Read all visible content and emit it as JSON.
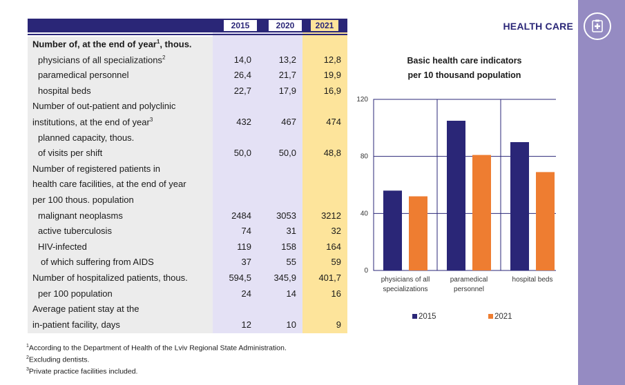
{
  "header": {
    "section_title": "HEALTH CARE",
    "logo_icon": "medical-cross-icon"
  },
  "colors": {
    "navy": "#2a2677",
    "orange": "#ee7d31",
    "lavender": "#958bc2",
    "highlight_2021": "#fde49b"
  },
  "table": {
    "years": [
      "2015",
      "2020",
      "2021"
    ],
    "rows": [
      {
        "label": "Number of, at the end of year",
        "sup": "1",
        "label_tail": ", thous.",
        "bold": true,
        "indent": 0,
        "values": [
          "",
          "",
          ""
        ]
      },
      {
        "label": "physicians of all specializations",
        "sup": "2",
        "label_tail": "",
        "indent": 2,
        "values": [
          "14,0",
          "13,2",
          "12,8"
        ]
      },
      {
        "label": "paramedical personnel",
        "sup": "",
        "label_tail": "",
        "indent": 2,
        "values": [
          "26,4",
          "21,7",
          "19,9"
        ]
      },
      {
        "label": "hospital beds",
        "sup": "",
        "label_tail": "",
        "indent": 2,
        "values": [
          "22,7",
          "17,9",
          "16,9"
        ]
      },
      {
        "label": "Number of out-patient and polyclinic",
        "sup": "",
        "label_tail": "",
        "indent": 1,
        "values": [
          "",
          "",
          ""
        ]
      },
      {
        "label": "institutions, at the end of year",
        "sup": "3",
        "label_tail": "",
        "indent": 1,
        "values": [
          "432",
          "467",
          "474"
        ]
      },
      {
        "label": "planned capacity, thous.",
        "sup": "",
        "label_tail": "",
        "indent": 2,
        "values": [
          "",
          "",
          ""
        ]
      },
      {
        "label": "of visits per shift",
        "sup": "",
        "label_tail": "",
        "indent": 2,
        "values": [
          "50,0",
          "50,0",
          "48,8"
        ]
      },
      {
        "label": "Number of registered patients in",
        "sup": "",
        "label_tail": "",
        "indent": 1,
        "values": [
          "",
          "",
          ""
        ]
      },
      {
        "label": "health care facilities, at the end of year",
        "sup": "",
        "label_tail": "",
        "indent": 1,
        "values": [
          "",
          "",
          ""
        ]
      },
      {
        "label": "per 100 thous. population",
        "sup": "",
        "label_tail": "",
        "indent": 1,
        "values": [
          "",
          "",
          ""
        ]
      },
      {
        "label": "malignant neoplasms",
        "sup": "",
        "label_tail": "",
        "indent": 2,
        "values": [
          "2484",
          "3053",
          "3212"
        ]
      },
      {
        "label": "active tuberculosis",
        "sup": "",
        "label_tail": "",
        "indent": 2,
        "values": [
          "74",
          "31",
          "32"
        ]
      },
      {
        "label": "HIV-infected",
        "sup": "",
        "label_tail": "",
        "indent": 2,
        "values": [
          "119",
          "158",
          "164"
        ]
      },
      {
        "label": "of which suffering from AIDS",
        "sup": "",
        "label_tail": "",
        "indent": 3,
        "values": [
          "37",
          "55",
          "59"
        ]
      },
      {
        "label": "Number of hospitalized patients, thous.",
        "sup": "",
        "label_tail": "",
        "indent": 1,
        "values": [
          "594,5",
          "345,9",
          "401,7"
        ]
      },
      {
        "label": "per 100 population",
        "sup": "",
        "label_tail": "",
        "indent": 2,
        "values": [
          "24",
          "14",
          "16"
        ]
      },
      {
        "label": "Average patient stay at the",
        "sup": "",
        "label_tail": "",
        "indent": 1,
        "values": [
          "",
          "",
          ""
        ]
      },
      {
        "label": "in-patient facility, days",
        "sup": "",
        "label_tail": "",
        "indent": 1,
        "values": [
          "12",
          "10",
          "9"
        ]
      }
    ]
  },
  "footnotes": [
    {
      "num": "1",
      "text": "According to the Department of Health of the Lviv Regional State Administration."
    },
    {
      "num": "2",
      "text": "Excluding dentists."
    },
    {
      "num": "3",
      "text": "Private practice facilities included."
    }
  ],
  "chart_data": {
    "type": "bar",
    "title": "Basic health care indicators per 10 thousand population",
    "title_lines": [
      "Basic health care indicators",
      "per 10 thousand population"
    ],
    "categories": [
      [
        "physicians of all",
        "specializations"
      ],
      [
        "paramedical",
        "personnel"
      ],
      [
        "hospital beds"
      ]
    ],
    "series": [
      {
        "name": "2015",
        "color": "#2a2677",
        "values": [
          56,
          105,
          90
        ]
      },
      {
        "name": "2021",
        "color": "#ee7d31",
        "values": [
          52,
          81,
          69
        ]
      }
    ],
    "ylim": [
      0,
      120
    ],
    "yticks": [
      0,
      40,
      80,
      120
    ],
    "grid": true,
    "legend": "bottom"
  }
}
